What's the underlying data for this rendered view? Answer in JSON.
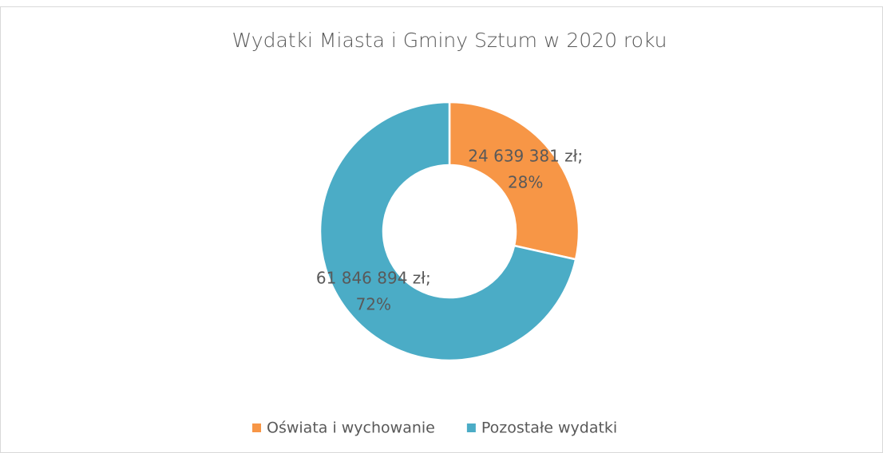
{
  "chart_data": {
    "type": "donut",
    "title": "Wydatki Miasta i Gminy Sztum w 2020 roku",
    "categories": [
      "Oświata i wychowanie",
      "Pozostałe wydatki"
    ],
    "values": [
      24639381,
      61846894
    ],
    "value_labels": [
      [
        "24 639 381 zł;",
        "28%"
      ],
      [
        "61 846 894 zł;",
        "72%"
      ]
    ],
    "colors": [
      "#f79646",
      "#4bacc6"
    ],
    "legend": "bottom"
  }
}
